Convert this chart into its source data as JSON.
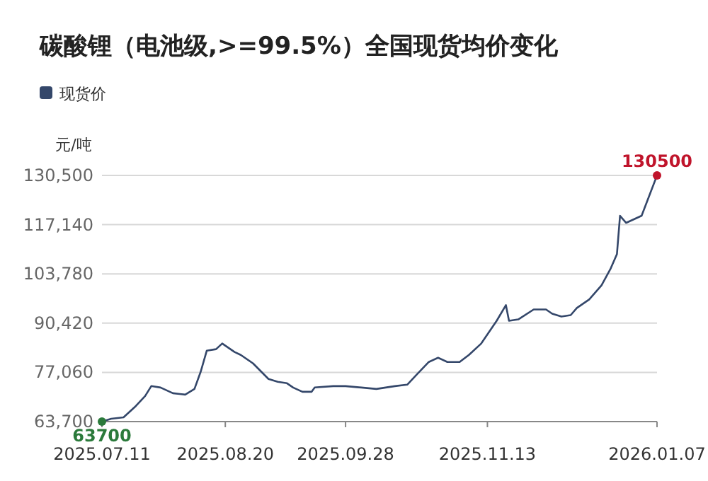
{
  "chart_data": {
    "type": "line",
    "title": "碳酸锂（电池级,>=99.5%）全国现货均价变化",
    "ylabel": "元/吨",
    "x": [
      "2025-07-11",
      "2025-07-14",
      "2025-07-18",
      "2025-07-22",
      "2025-07-25",
      "2025-07-27",
      "2025-07-30",
      "2025-08-03",
      "2025-08-07",
      "2025-08-10",
      "2025-08-12",
      "2025-08-14",
      "2025-08-17",
      "2025-08-19",
      "2025-08-23",
      "2025-08-25",
      "2025-08-29",
      "2025-09-03",
      "2025-09-06",
      "2025-09-09",
      "2025-09-11",
      "2025-09-14",
      "2025-09-17",
      "2025-09-18",
      "2025-09-24",
      "2025-09-28",
      "2025-10-08",
      "2025-10-14",
      "2025-10-18",
      "2025-10-21",
      "2025-10-25",
      "2025-10-28",
      "2025-10-31",
      "2025-11-04",
      "2025-11-07",
      "2025-11-11",
      "2025-11-16",
      "2025-11-19",
      "2025-11-20",
      "2025-11-23",
      "2025-11-28",
      "2025-12-02",
      "2025-12-04",
      "2025-12-07",
      "2025-12-10",
      "2025-12-12",
      "2025-12-16",
      "2025-12-20",
      "2025-12-23",
      "2025-12-25",
      "2025-12-26",
      "2025-12-28",
      "2026-01-02",
      "2026-01-07"
    ],
    "series": [
      {
        "name": "现货价",
        "color": "#34476a",
        "values": [
          63700,
          64470,
          64860,
          67940,
          70630,
          73330,
          72940,
          71400,
          71020,
          72560,
          77180,
          82960,
          83350,
          84890,
          82580,
          81800,
          79490,
          75260,
          74490,
          74100,
          72950,
          71790,
          71790,
          72950,
          73330,
          73330,
          72560,
          73330,
          73720,
          76410,
          79880,
          81030,
          79880,
          79880,
          81800,
          84890,
          91050,
          95290,
          91050,
          91430,
          94130,
          94130,
          92980,
          92200,
          92590,
          94520,
          96830,
          100680,
          105300,
          109150,
          119550,
          117630,
          119550,
          130500
        ]
      }
    ],
    "xlim": [
      "2025-07-11",
      "2026-01-07"
    ],
    "xticks": [
      {
        "value": "2025-07-11",
        "label": "2025.07.11"
      },
      {
        "value": "2025-08-20",
        "label": "2025.08.20"
      },
      {
        "value": "2025-09-28",
        "label": "2025.09.28"
      },
      {
        "value": "2025-11-13",
        "label": "2025.11.13"
      },
      {
        "value": "2026-01-07",
        "label": "2026.01.07"
      }
    ],
    "ylim": [
      63700,
      130500
    ],
    "yticks": [
      {
        "value": 63700,
        "label": "63,700"
      },
      {
        "value": 77060,
        "label": "77,060"
      },
      {
        "value": 90420,
        "label": "90,420"
      },
      {
        "value": 103780,
        "label": "103,780"
      },
      {
        "value": 117140,
        "label": "117,140"
      },
      {
        "value": 130500,
        "label": "130,500"
      }
    ],
    "grid": "y",
    "legend": "top left",
    "marker": "none",
    "line_style": "solid",
    "annotations": [
      {
        "text": "63700",
        "x": "2025-07-11",
        "y": 63700
      },
      {
        "text": "130500",
        "x": "2026-01-07",
        "y": 130500
      }
    ]
  }
}
